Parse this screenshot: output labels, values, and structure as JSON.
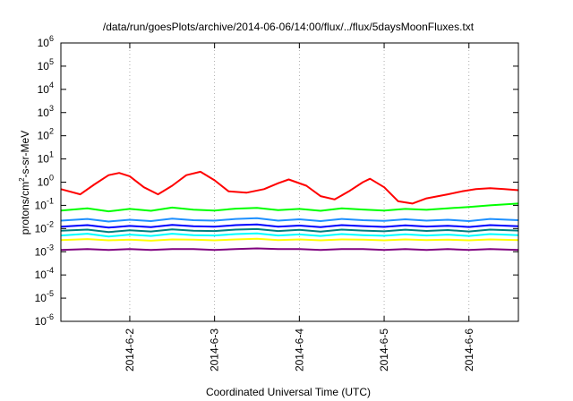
{
  "chart_data": {
    "type": "line",
    "title": "/data/run/goesPlots/archive/2014-06-06/14:00/flux/../flux/5daysMoonFluxes.txt",
    "xlabel": "Coordinated Universal Time (UTC)",
    "ylabel": "protons/cm2-s-sr-MeV",
    "ylabel_parts": {
      "base": "protons/cm",
      "sup": "2",
      "rest": "-s-sr-MeV"
    },
    "y_scale": "log",
    "ylim": [
      1e-06,
      1000000.0
    ],
    "y_ticks": [
      {
        "value": 1e-06,
        "base": "10",
        "exp": "-6"
      },
      {
        "value": 1e-05,
        "base": "10",
        "exp": "-5"
      },
      {
        "value": 0.0001,
        "base": "10",
        "exp": "-4"
      },
      {
        "value": 0.001,
        "base": "10",
        "exp": "-3"
      },
      {
        "value": 0.01,
        "base": "10",
        "exp": "-2"
      },
      {
        "value": 0.1,
        "base": "10",
        "exp": "-1"
      },
      {
        "value": 1,
        "base": "10",
        "exp": "0"
      },
      {
        "value": 10,
        "base": "10",
        "exp": "1"
      },
      {
        "value": 100,
        "base": "10",
        "exp": "2"
      },
      {
        "value": 1000,
        "base": "10",
        "exp": "3"
      },
      {
        "value": 10000,
        "base": "10",
        "exp": "4"
      },
      {
        "value": 100000,
        "base": "10",
        "exp": "5"
      },
      {
        "value": 1000000,
        "base": "10",
        "exp": "6"
      }
    ],
    "x_type": "date",
    "xlim": [
      "2014-06-01T04:30",
      "2014-06-06T14:00"
    ],
    "x_ticks": [
      {
        "value": "2014-06-02T00:00",
        "label": "2014-6-2"
      },
      {
        "value": "2014-06-03T00:00",
        "label": "2014-6-3"
      },
      {
        "value": "2014-06-04T00:00",
        "label": "2014-6-4"
      },
      {
        "value": "2014-06-05T00:00",
        "label": "2014-6-5"
      },
      {
        "value": "2014-06-06T00:00",
        "label": "2014-6-6"
      }
    ],
    "grid": true,
    "legend": "none",
    "series": [
      {
        "color": "#800080",
        "points": [
          [
            "2014-06-01T04:30",
            0.0012
          ],
          [
            "2014-06-01T12:00",
            0.0013
          ],
          [
            "2014-06-01T18:00",
            0.0012
          ],
          [
            "2014-06-02T00:00",
            0.0013
          ],
          [
            "2014-06-02T06:00",
            0.0012
          ],
          [
            "2014-06-02T12:00",
            0.0013
          ],
          [
            "2014-06-02T18:00",
            0.0013
          ],
          [
            "2014-06-03T00:00",
            0.0012
          ],
          [
            "2014-06-03T06:00",
            0.0013
          ],
          [
            "2014-06-03T12:00",
            0.0014
          ],
          [
            "2014-06-03T18:00",
            0.0013
          ],
          [
            "2014-06-04T00:00",
            0.0013
          ],
          [
            "2014-06-04T06:00",
            0.0012
          ],
          [
            "2014-06-04T12:00",
            0.0013
          ],
          [
            "2014-06-04T18:00",
            0.0013
          ],
          [
            "2014-06-05T00:00",
            0.0012
          ],
          [
            "2014-06-05T06:00",
            0.0013
          ],
          [
            "2014-06-05T12:00",
            0.0012
          ],
          [
            "2014-06-05T18:00",
            0.0013
          ],
          [
            "2014-06-06T00:00",
            0.0012
          ],
          [
            "2014-06-06T06:00",
            0.0013
          ],
          [
            "2014-06-06T14:00",
            0.0012
          ]
        ]
      },
      {
        "color": "#ffff00",
        "points": [
          [
            "2014-06-01T04:30",
            0.0032
          ],
          [
            "2014-06-01T12:00",
            0.0035
          ],
          [
            "2014-06-01T18:00",
            0.0031
          ],
          [
            "2014-06-02T00:00",
            0.0033
          ],
          [
            "2014-06-02T06:00",
            0.003
          ],
          [
            "2014-06-02T12:00",
            0.0034
          ],
          [
            "2014-06-02T18:00",
            0.0033
          ],
          [
            "2014-06-03T00:00",
            0.0031
          ],
          [
            "2014-06-03T06:00",
            0.0034
          ],
          [
            "2014-06-03T12:00",
            0.0036
          ],
          [
            "2014-06-03T18:00",
            0.0032
          ],
          [
            "2014-06-04T00:00",
            0.0034
          ],
          [
            "2014-06-04T06:00",
            0.0031
          ],
          [
            "2014-06-04T12:00",
            0.0034
          ],
          [
            "2014-06-04T18:00",
            0.0033
          ],
          [
            "2014-06-05T00:00",
            0.0031
          ],
          [
            "2014-06-05T06:00",
            0.0034
          ],
          [
            "2014-06-05T12:00",
            0.0032
          ],
          [
            "2014-06-05T18:00",
            0.0033
          ],
          [
            "2014-06-06T00:00",
            0.0031
          ],
          [
            "2014-06-06T06:00",
            0.0034
          ],
          [
            "2014-06-06T14:00",
            0.0032
          ]
        ]
      },
      {
        "color": "#00ffff",
        "points": [
          [
            "2014-06-01T04:30",
            0.005
          ],
          [
            "2014-06-01T12:00",
            0.006
          ],
          [
            "2014-06-01T18:00",
            0.0045
          ],
          [
            "2014-06-02T00:00",
            0.0055
          ],
          [
            "2014-06-02T06:00",
            0.0048
          ],
          [
            "2014-06-02T12:00",
            0.006
          ],
          [
            "2014-06-02T18:00",
            0.0052
          ],
          [
            "2014-06-03T00:00",
            0.005
          ],
          [
            "2014-06-03T06:00",
            0.0058
          ],
          [
            "2014-06-03T12:00",
            0.0062
          ],
          [
            "2014-06-03T18:00",
            0.005
          ],
          [
            "2014-06-04T00:00",
            0.0056
          ],
          [
            "2014-06-04T06:00",
            0.0048
          ],
          [
            "2014-06-04T12:00",
            0.0058
          ],
          [
            "2014-06-04T18:00",
            0.0052
          ],
          [
            "2014-06-05T00:00",
            0.0049
          ],
          [
            "2014-06-05T06:00",
            0.0057
          ],
          [
            "2014-06-05T12:00",
            0.005
          ],
          [
            "2014-06-05T18:00",
            0.0055
          ],
          [
            "2014-06-06T00:00",
            0.0048
          ],
          [
            "2014-06-06T06:00",
            0.0058
          ],
          [
            "2014-06-06T14:00",
            0.0052
          ]
        ]
      },
      {
        "color": "#008080",
        "points": [
          [
            "2014-06-01T04:30",
            0.008
          ],
          [
            "2014-06-01T12:00",
            0.009
          ],
          [
            "2014-06-01T18:00",
            0.007
          ],
          [
            "2014-06-02T00:00",
            0.0085
          ],
          [
            "2014-06-02T06:00",
            0.0075
          ],
          [
            "2014-06-02T12:00",
            0.0092
          ],
          [
            "2014-06-02T18:00",
            0.008
          ],
          [
            "2014-06-03T00:00",
            0.0078
          ],
          [
            "2014-06-03T06:00",
            0.009
          ],
          [
            "2014-06-03T12:00",
            0.0095
          ],
          [
            "2014-06-03T18:00",
            0.0078
          ],
          [
            "2014-06-04T00:00",
            0.0088
          ],
          [
            "2014-06-04T06:00",
            0.0074
          ],
          [
            "2014-06-04T12:00",
            0.009
          ],
          [
            "2014-06-04T18:00",
            0.0082
          ],
          [
            "2014-06-05T00:00",
            0.0076
          ],
          [
            "2014-06-05T06:00",
            0.0089
          ],
          [
            "2014-06-05T12:00",
            0.0079
          ],
          [
            "2014-06-05T18:00",
            0.0086
          ],
          [
            "2014-06-06T00:00",
            0.0075
          ],
          [
            "2014-06-06T06:00",
            0.009
          ],
          [
            "2014-06-06T14:00",
            0.0082
          ]
        ]
      },
      {
        "color": "#0000ff",
        "points": [
          [
            "2014-06-01T04:30",
            0.012
          ],
          [
            "2014-06-01T12:00",
            0.014
          ],
          [
            "2014-06-01T18:00",
            0.011
          ],
          [
            "2014-06-02T00:00",
            0.013
          ],
          [
            "2014-06-02T06:00",
            0.0115
          ],
          [
            "2014-06-02T12:00",
            0.0145
          ],
          [
            "2014-06-02T18:00",
            0.0125
          ],
          [
            "2014-06-03T00:00",
            0.012
          ],
          [
            "2014-06-03T06:00",
            0.014
          ],
          [
            "2014-06-03T12:00",
            0.015
          ],
          [
            "2014-06-03T18:00",
            0.012
          ],
          [
            "2014-06-04T00:00",
            0.0135
          ],
          [
            "2014-06-04T06:00",
            0.0115
          ],
          [
            "2014-06-04T12:00",
            0.014
          ],
          [
            "2014-06-04T18:00",
            0.0128
          ],
          [
            "2014-06-05T00:00",
            0.0118
          ],
          [
            "2014-06-05T06:00",
            0.0138
          ],
          [
            "2014-06-05T12:00",
            0.0122
          ],
          [
            "2014-06-05T18:00",
            0.0132
          ],
          [
            "2014-06-06T00:00",
            0.0117
          ],
          [
            "2014-06-06T06:00",
            0.014
          ],
          [
            "2014-06-06T14:00",
            0.0126
          ]
        ]
      },
      {
        "color": "#1e90ff",
        "points": [
          [
            "2014-06-01T04:30",
            0.022
          ],
          [
            "2014-06-01T12:00",
            0.026
          ],
          [
            "2014-06-01T18:00",
            0.02
          ],
          [
            "2014-06-02T00:00",
            0.024
          ],
          [
            "2014-06-02T06:00",
            0.021
          ],
          [
            "2014-06-02T12:00",
            0.027
          ],
          [
            "2014-06-02T18:00",
            0.023
          ],
          [
            "2014-06-03T00:00",
            0.022
          ],
          [
            "2014-06-03T06:00",
            0.026
          ],
          [
            "2014-06-03T12:00",
            0.028
          ],
          [
            "2014-06-03T18:00",
            0.022
          ],
          [
            "2014-06-04T00:00",
            0.025
          ],
          [
            "2014-06-04T06:00",
            0.021
          ],
          [
            "2014-06-04T12:00",
            0.026
          ],
          [
            "2014-06-04T18:00",
            0.023
          ],
          [
            "2014-06-05T00:00",
            0.0215
          ],
          [
            "2014-06-05T06:00",
            0.025
          ],
          [
            "2014-06-05T12:00",
            0.022
          ],
          [
            "2014-06-05T18:00",
            0.024
          ],
          [
            "2014-06-06T00:00",
            0.021
          ],
          [
            "2014-06-06T06:00",
            0.026
          ],
          [
            "2014-06-06T14:00",
            0.023
          ]
        ]
      },
      {
        "color": "#00ff00",
        "points": [
          [
            "2014-06-01T04:30",
            0.06
          ],
          [
            "2014-06-01T12:00",
            0.075
          ],
          [
            "2014-06-01T18:00",
            0.055
          ],
          [
            "2014-06-02T00:00",
            0.07
          ],
          [
            "2014-06-02T06:00",
            0.058
          ],
          [
            "2014-06-02T12:00",
            0.08
          ],
          [
            "2014-06-02T18:00",
            0.065
          ],
          [
            "2014-06-03T00:00",
            0.06
          ],
          [
            "2014-06-03T06:00",
            0.072
          ],
          [
            "2014-06-03T12:00",
            0.078
          ],
          [
            "2014-06-03T18:00",
            0.062
          ],
          [
            "2014-06-04T00:00",
            0.07
          ],
          [
            "2014-06-04T06:00",
            0.058
          ],
          [
            "2014-06-04T12:00",
            0.074
          ],
          [
            "2014-06-04T18:00",
            0.066
          ],
          [
            "2014-06-05T00:00",
            0.06
          ],
          [
            "2014-06-05T06:00",
            0.07
          ],
          [
            "2014-06-05T12:00",
            0.064
          ],
          [
            "2014-06-05T18:00",
            0.075
          ],
          [
            "2014-06-06T00:00",
            0.085
          ],
          [
            "2014-06-06T06:00",
            0.1
          ],
          [
            "2014-06-06T14:00",
            0.12
          ]
        ]
      },
      {
        "color": "#ff0000",
        "points": [
          [
            "2014-06-01T04:30",
            0.5
          ],
          [
            "2014-06-01T10:00",
            0.3
          ],
          [
            "2014-06-01T14:00",
            0.8
          ],
          [
            "2014-06-01T18:00",
            2.0
          ],
          [
            "2014-06-01T21:00",
            2.5
          ],
          [
            "2014-06-02T00:00",
            1.8
          ],
          [
            "2014-06-02T04:00",
            0.6
          ],
          [
            "2014-06-02T08:00",
            0.3
          ],
          [
            "2014-06-02T12:00",
            0.7
          ],
          [
            "2014-06-02T16:00",
            2.0
          ],
          [
            "2014-06-02T20:00",
            2.8
          ],
          [
            "2014-06-03T00:00",
            1.2
          ],
          [
            "2014-06-03T04:00",
            0.4
          ],
          [
            "2014-06-03T09:00",
            0.35
          ],
          [
            "2014-06-03T14:00",
            0.5
          ],
          [
            "2014-06-03T18:00",
            0.9
          ],
          [
            "2014-06-03T21:00",
            1.3
          ],
          [
            "2014-06-04T02:00",
            0.7
          ],
          [
            "2014-06-04T06:00",
            0.25
          ],
          [
            "2014-06-04T10:00",
            0.18
          ],
          [
            "2014-06-04T14:00",
            0.4
          ],
          [
            "2014-06-04T18:00",
            1.0
          ],
          [
            "2014-06-04T20:00",
            1.4
          ],
          [
            "2014-06-05T00:00",
            0.6
          ],
          [
            "2014-06-05T04:00",
            0.15
          ],
          [
            "2014-06-05T08:00",
            0.12
          ],
          [
            "2014-06-05T12:00",
            0.2
          ],
          [
            "2014-06-05T18:00",
            0.3
          ],
          [
            "2014-06-05T22:00",
            0.4
          ],
          [
            "2014-06-06T02:00",
            0.5
          ],
          [
            "2014-06-06T06:00",
            0.55
          ],
          [
            "2014-06-06T10:00",
            0.5
          ],
          [
            "2014-06-06T14:00",
            0.45
          ]
        ]
      }
    ]
  }
}
